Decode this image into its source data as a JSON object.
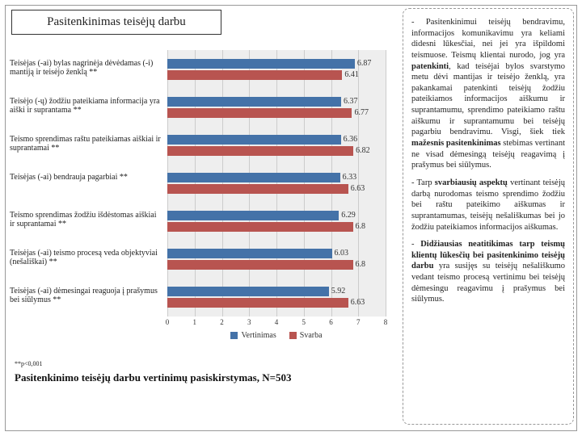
{
  "title": "Pasitenkinimas teisėjų darbu",
  "chart": {
    "type": "bar-horizontal-grouped",
    "xlim": [
      0,
      8
    ],
    "xtick_step": 1,
    "background_color": "#eeeeee",
    "grid_color": "#cccccc",
    "series": [
      {
        "name": "Vertinimas",
        "color": "#4472a8"
      },
      {
        "name": "Svarba",
        "color": "#b85450"
      }
    ],
    "categories": [
      {
        "label": "Teisėjas (-ai) bylas nagrinėja dėvėdamas (-i) mantiją ir teisėjo ženklą **",
        "values": [
          6.87,
          6.41
        ]
      },
      {
        "label": "Teisėjo (-ų) žodžiu pateikiama informacija yra aiški ir suprantama **",
        "values": [
          6.37,
          6.77
        ]
      },
      {
        "label": "Teismo sprendimas raštu pateikiamas aiškiai ir suprantamai **",
        "values": [
          6.36,
          6.82
        ]
      },
      {
        "label": "Teisėjas (-ai) bendrauja pagarbiai **",
        "values": [
          6.33,
          6.63
        ]
      },
      {
        "label": "Teismo sprendimas žodžiu išdėstomas aiškiai ir suprantamai **",
        "values": [
          6.29,
          6.8
        ]
      },
      {
        "label": "Teisėjas (-ai) teismo procesą veda objektyviai (nešališkai) **",
        "values": [
          6.03,
          6.8
        ]
      },
      {
        "label": "Teisėjas (-ai) dėmesingai reaguoja į prašymus bei siūlymus **",
        "values": [
          5.92,
          6.63
        ]
      }
    ],
    "label_fontsize": 10,
    "value_fontsize": 10
  },
  "footnote": "**p<0,001",
  "bottom_title": "Pasitenkinimo teisėjų darbu vertinimų pasiskirstymas, N=503",
  "side": {
    "p1_a": "- Pasitenkinimui teisėjų bendravimu, informacijos komunikavimu yra keliami didesni lūkesčiai, nei jei yra išpildomi teismuose. Teismų klientai nurodo, jog yra ",
    "p1_b": "patenkinti",
    "p1_c": ", kad teisėjai bylos svarstymo metu dėvi mantijas ir teisėjo ženklą, yra pakankamai patenkinti teisėjų žodžiu pateikiamos informacijos aiškumu ir suprantamumu, sprendimo pateikiamo raštu aiškumu ir suprantamumu bei teisėjų pagarbiu bendravimu. Visgi, šiek tiek ",
    "p1_d": "mažesnis pasitenkinimas",
    "p1_e": " stebimas vertinant ne visad dėmesingą teisėjų reagavimą į prašymus bei siūlymus.",
    "p2_a": "- Tarp ",
    "p2_b": "svarbiausių aspektų",
    "p2_c": " vertinant teisėjų darbą nurodomas teismo sprendimo žodžiu bei raštu pateikimo aiškumas ir suprantamumas, teisėjų nešališkumas bei jo žodžiu pateikiamos informacijos aiškumas.",
    "p3_a": "- ",
    "p3_b": "Didžiausias neatitikimas tarp teismų klientų lūkesčių bei pasitenkinimo teisėjų darbu",
    "p3_c": " yra susijęs su teisėjų nešališkumo vedant teismo procesą vertinimu bei teisėjų dėmesingu reagavimu į prašymus bei siūlymus."
  }
}
